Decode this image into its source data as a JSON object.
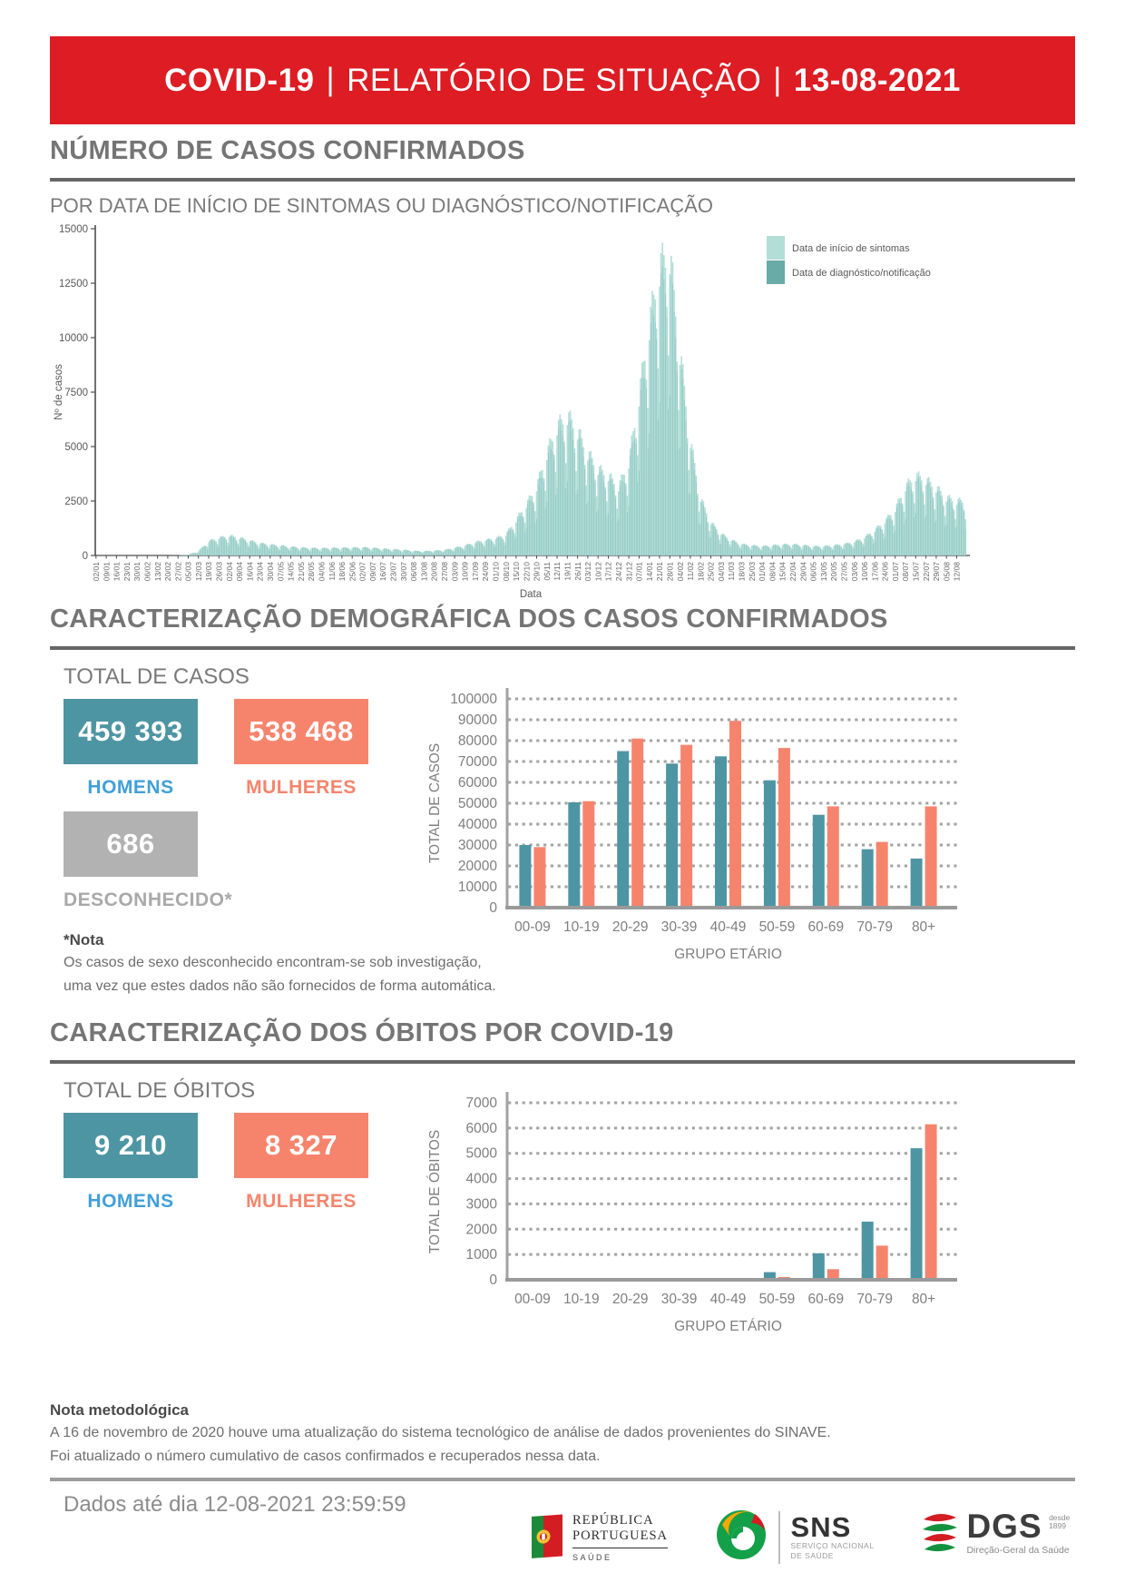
{
  "header": {
    "app": "COVID-19",
    "separator": "|",
    "report": "RELATÓRIO DE SITUAÇÃO",
    "date": "13-08-2021"
  },
  "sections": {
    "cases": {
      "title": "NÚMERO DE CASOS CONFIRMADOS",
      "subtitle": "POR DATA DE INÍCIO DE SINTOMAS OU DIAGNÓSTICO/NOTIFICAÇÃO"
    },
    "demographics": {
      "title": "CARACTERIZAÇÃO DEMOGRÁFICA DOS CASOS CONFIRMADOS",
      "total_label": "TOTAL DE CASOS",
      "homens": {
        "value": "459 393",
        "label": "HOMENS"
      },
      "mulheres": {
        "value": "538 468",
        "label": "MULHERES"
      },
      "desconhecido": {
        "value": "686",
        "label": "DESCONHECIDO*"
      },
      "note_title": "*Nota",
      "note_lines": [
        "Os casos de sexo desconhecido encontram-se sob investigação,",
        "uma vez que estes dados não são fornecidos de forma automática."
      ]
    },
    "deaths": {
      "title": "CARACTERIZAÇÃO DOS ÓBITOS POR COVID-19",
      "total_label": "TOTAL DE ÓBITOS",
      "homens": {
        "value": "9 210",
        "label": "HOMENS"
      },
      "mulheres": {
        "value": "8 327",
        "label": "MULHERES"
      }
    },
    "method_note": {
      "title": "Nota metodológica",
      "lines": [
        "A 16 de novembro de 2020 houve uma atualização do sistema tecnológico de análise de dados provenientes do SINAVE.",
        "Foi atualizado o número cumulativo de casos confirmados e recuperados nessa data."
      ]
    },
    "footer": {
      "data_until": "Dados até dia 12-08-2021 23:59:59"
    }
  },
  "logos": {
    "republica": {
      "line1": "REPÚBLICA",
      "line2": "PORTUGUESA",
      "sub": "SAÚDE"
    },
    "sns": {
      "big": "SNS",
      "sub1": "SERVIÇO NACIONAL",
      "sub2": "DE SAÚDE"
    },
    "dgs": {
      "big": "DGS",
      "desde1": "desde",
      "desde2": "1899",
      "sub": "Direção-Geral da Saúde"
    }
  },
  "colors": {
    "red": "#DD1C23",
    "teal": "#4E95A3",
    "salmon": "#F6846D",
    "light_teal": "#B3DED8",
    "mid_teal": "#68ABA7",
    "gray_box": "#B2B2B2",
    "homens_blue": "#41A0D8",
    "desconhecido_gray": "#A9A9A9",
    "axis_gray": "#7F7F7F"
  },
  "chart_data": [
    {
      "type": "bar",
      "title": "POR DATA DE INÍCIO DE SINTOMAS OU DIAGNÓSTICO/NOTIFICAÇÃO",
      "xlabel": "Data",
      "ylabel": "Nº de casos",
      "ylim": [
        0,
        15000
      ],
      "ytick_step": 2500,
      "grid": false,
      "legend_position": "upper right inside",
      "x_tick_labels": [
        "02/01",
        "09/01",
        "16/01",
        "23/01",
        "30/01",
        "06/02",
        "13/02",
        "20/02",
        "27/02",
        "05/03",
        "12/03",
        "19/03",
        "26/03",
        "02/04",
        "09/04",
        "16/04",
        "23/04",
        "30/04",
        "07/05",
        "14/05",
        "21/05",
        "28/05",
        "04/06",
        "11/06",
        "18/06",
        "25/06",
        "02/07",
        "09/07",
        "16/07",
        "23/07",
        "30/07",
        "06/08",
        "13/08",
        "20/08",
        "27/08",
        "03/09",
        "10/09",
        "17/09",
        "24/09",
        "01/10",
        "08/10",
        "15/10",
        "22/10",
        "29/10",
        "05/11",
        "12/11",
        "19/11",
        "26/11",
        "03/12",
        "10/12",
        "17/12",
        "24/12",
        "31/12",
        "07/01",
        "14/01",
        "21/01",
        "28/01",
        "04/02",
        "11/02",
        "18/02",
        "25/02",
        "04/03",
        "11/03",
        "18/03",
        "25/03",
        "01/04",
        "08/04",
        "15/04",
        "22/04",
        "29/04",
        "06/05",
        "13/05",
        "20/05",
        "27/05",
        "03/06",
        "10/06",
        "17/06",
        "24/06",
        "01/07",
        "08/07",
        "15/07",
        "22/07",
        "29/07",
        "05/08",
        "12/08"
      ],
      "series": [
        {
          "name": "Data de início de sintomas",
          "color": "#B3DED8",
          "weekly_values": [
            0,
            0,
            0,
            0,
            0,
            0,
            0,
            0,
            5,
            40,
            200,
            650,
            800,
            900,
            800,
            680,
            560,
            500,
            450,
            400,
            360,
            340,
            330,
            340,
            350,
            360,
            370,
            350,
            310,
            280,
            260,
            210,
            200,
            220,
            250,
            350,
            450,
            600,
            700,
            780,
            950,
            1600,
            2300,
            3100,
            4600,
            5800,
            6300,
            5600,
            4600,
            3900,
            3600,
            3100,
            4200,
            7200,
            10400,
            13000,
            13600,
            9200,
            5200,
            2600,
            1500,
            1000,
            700,
            520,
            460,
            420,
            460,
            500,
            510,
            470,
            420,
            420,
            460,
            520,
            620,
            820,
            1150,
            1550,
            2100,
            3100,
            3600,
            3400,
            3050,
            2600,
            2450
          ]
        },
        {
          "name": "Data de diagnóstico/notificação",
          "color": "#68ABA7",
          "weekly_values": [
            0,
            0,
            0,
            0,
            0,
            0,
            0,
            0,
            5,
            36,
            180,
            585,
            720,
            810,
            720,
            612,
            504,
            450,
            405,
            360,
            324,
            306,
            297,
            306,
            315,
            324,
            333,
            315,
            279,
            252,
            234,
            189,
            180,
            198,
            225,
            315,
            405,
            540,
            630,
            702,
            855,
            1440,
            2070,
            2790,
            4140,
            5220,
            5670,
            5040,
            4140,
            3510,
            3240,
            2790,
            3780,
            6480,
            9360,
            11700,
            12240,
            8280,
            4680,
            2340,
            1350,
            900,
            630,
            468,
            414,
            378,
            414,
            450,
            459,
            423,
            378,
            378,
            414,
            468,
            558,
            738,
            1035,
            1395,
            1890,
            2790,
            3240,
            3060,
            2745,
            2340,
            2205
          ]
        }
      ]
    },
    {
      "type": "grouped_bar",
      "title": "TOTAL DE CASOS por grupo etário",
      "xlabel": "GRUPO ETÁRIO",
      "ylabel": "TOTAL DE CASOS",
      "ylim": [
        0,
        100000
      ],
      "ytick_step": 10000,
      "grid": "dashed horizontal",
      "categories": [
        "00-09",
        "10-19",
        "20-29",
        "30-39",
        "40-49",
        "50-59",
        "60-69",
        "70-79",
        "80+"
      ],
      "series": [
        {
          "name": "HOMENS",
          "color": "#4E95A3",
          "values": [
            30000,
            50500,
            75000,
            69000,
            72500,
            61000,
            44500,
            28000,
            23500
          ]
        },
        {
          "name": "MULHERES",
          "color": "#F6846D",
          "values": [
            29000,
            51000,
            81000,
            78000,
            89500,
            76500,
            48500,
            31500,
            48500
          ]
        }
      ]
    },
    {
      "type": "grouped_bar",
      "title": "TOTAL DE ÓBITOS por grupo etário",
      "xlabel": "GRUPO ETÁRIO",
      "ylabel": "TOTAL DE ÓBITOS",
      "ylim": [
        0,
        7000
      ],
      "ytick_step": 1000,
      "grid": "dashed horizontal",
      "categories": [
        "00-09",
        "10-19",
        "20-29",
        "30-39",
        "40-49",
        "50-59",
        "60-69",
        "70-79",
        "80+"
      ],
      "series": [
        {
          "name": "HOMENS",
          "color": "#4E95A3",
          "values": [
            1,
            2,
            5,
            15,
            70,
            300,
            1050,
            2300,
            5200
          ]
        },
        {
          "name": "MULHERES",
          "color": "#F6846D",
          "values": [
            1,
            1,
            3,
            8,
            25,
            110,
            420,
            1350,
            6150
          ]
        }
      ]
    }
  ]
}
